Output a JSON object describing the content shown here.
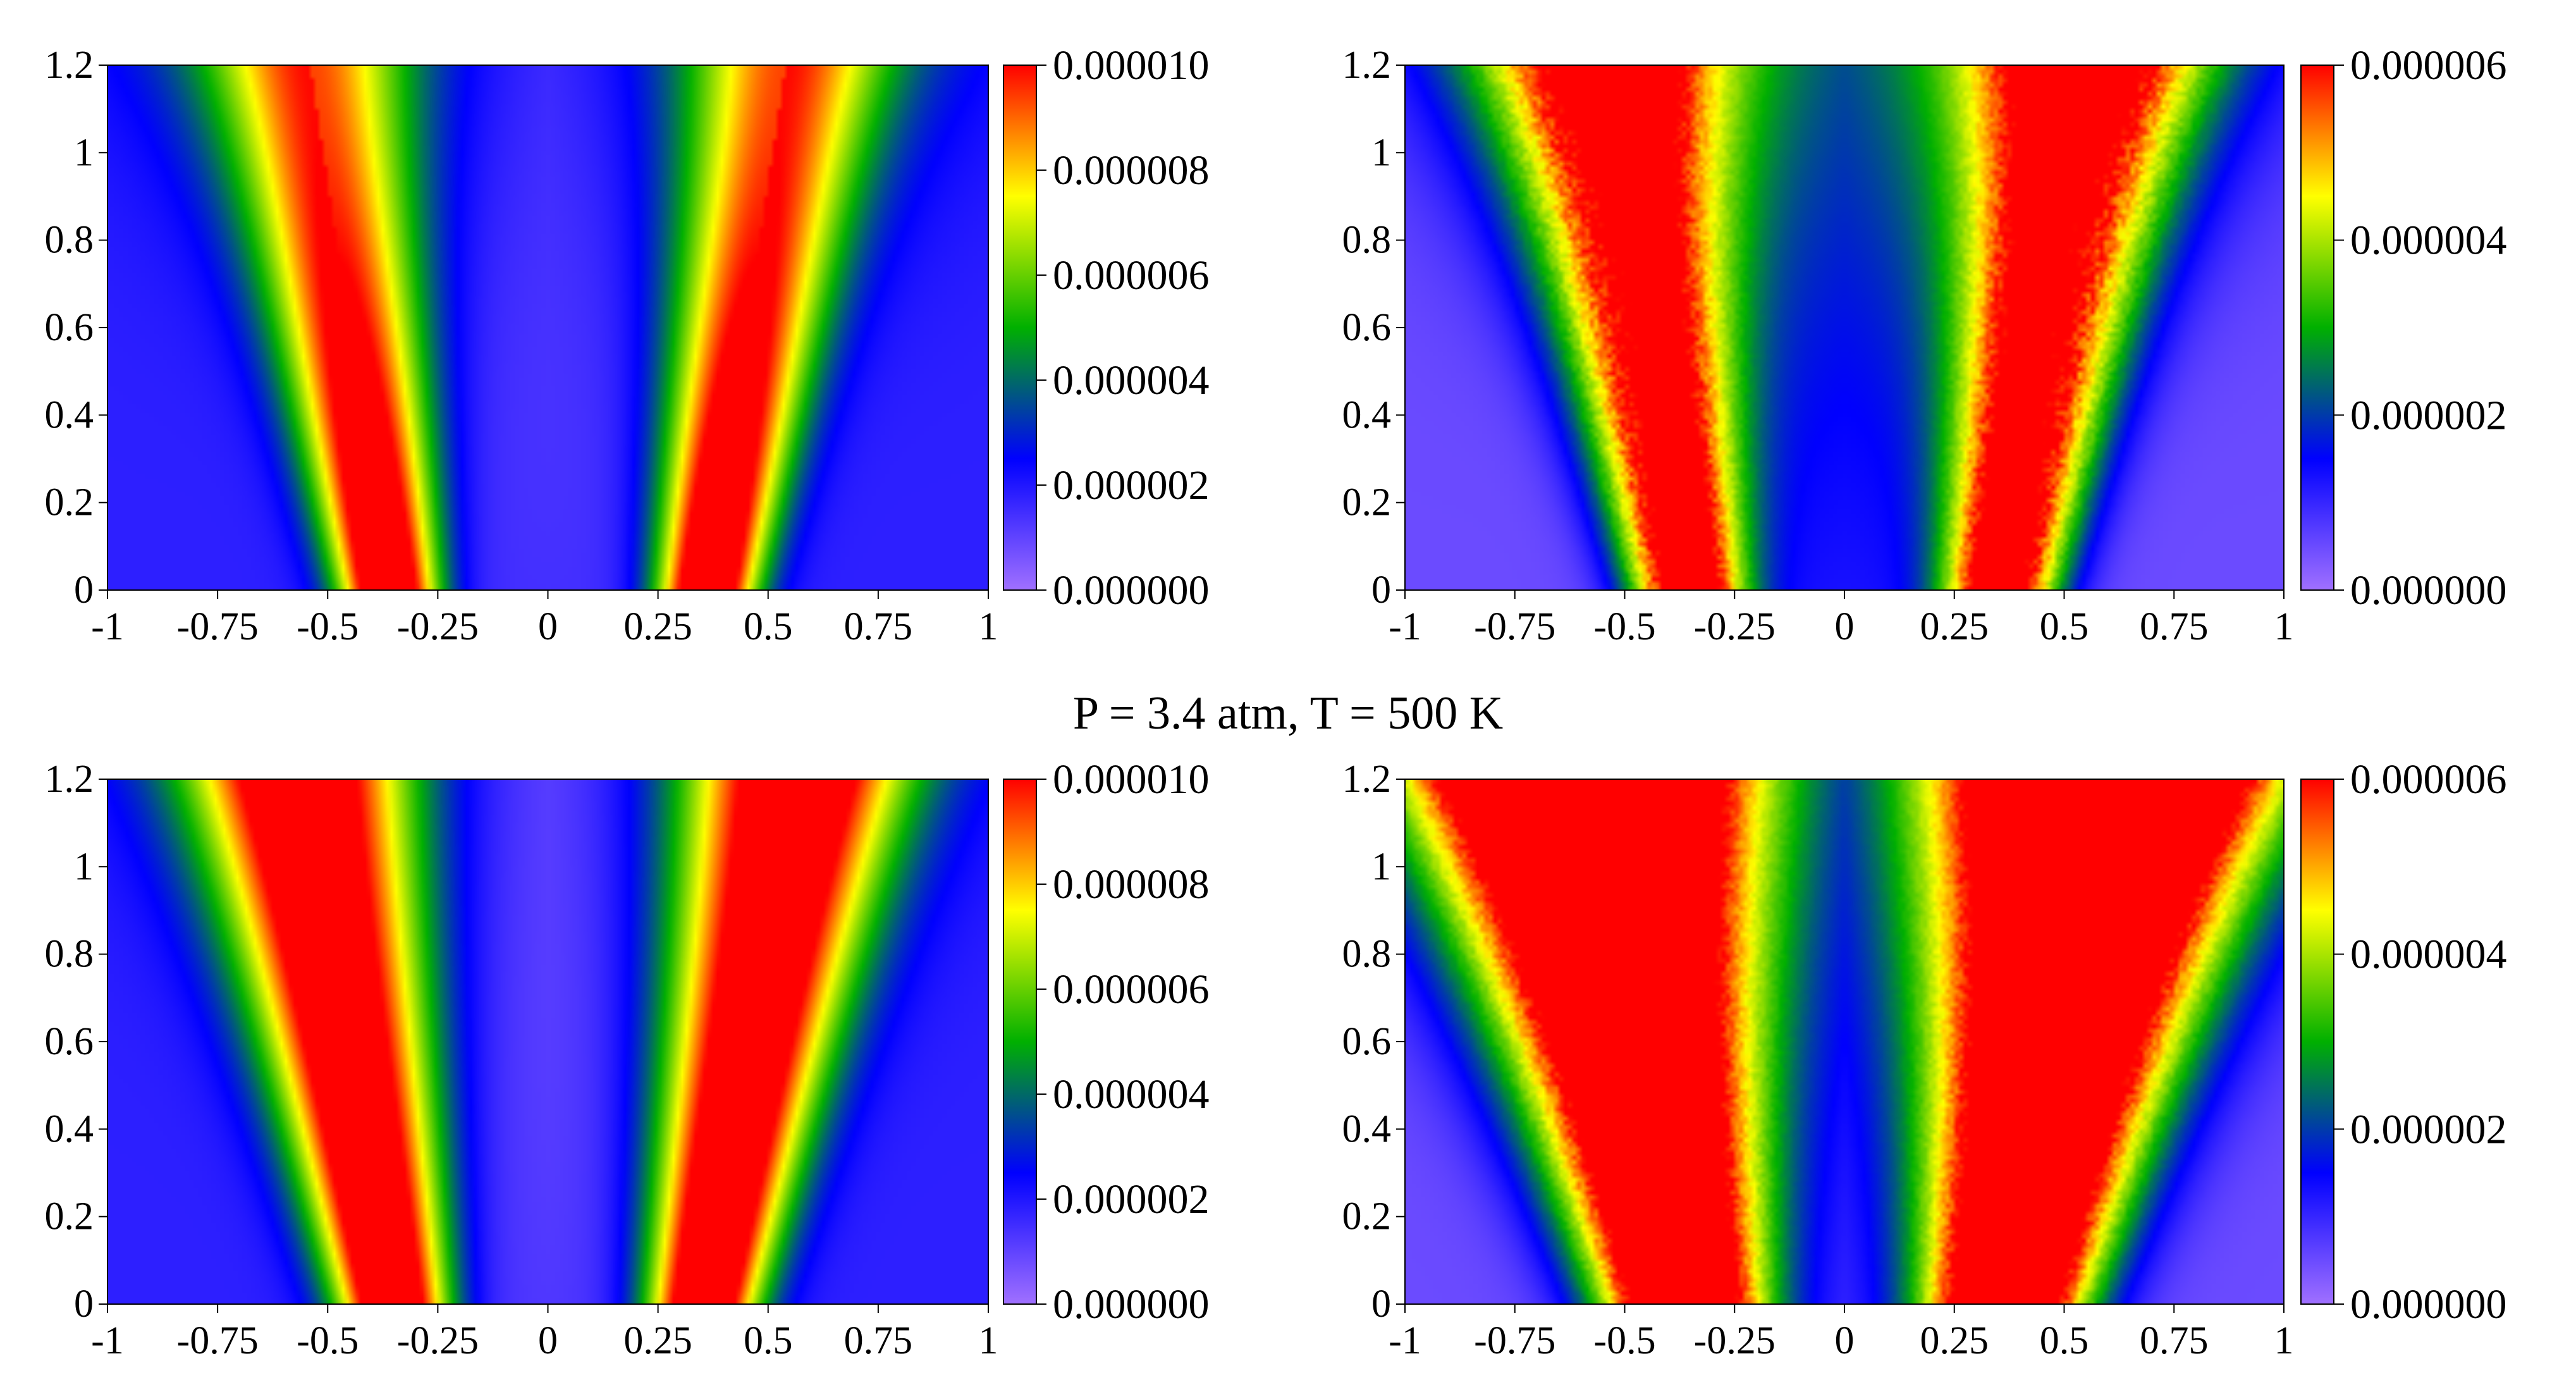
{
  "caption": "P = 3.4 atm, T = 500 K",
  "colors": {
    "colormap": [
      "#a070ff",
      "#0000ff",
      "#00b000",
      "#ffff00",
      "#ff0000"
    ],
    "axis": "#000000"
  },
  "chart_data": [
    {
      "type": "heatmap",
      "panel": "top-left",
      "title": "",
      "xlim": [
        -1,
        1
      ],
      "ylim": [
        0,
        1.2
      ],
      "xticks": [
        "-1",
        "-0.75",
        "-0.5",
        "-0.25",
        "0",
        "0.25",
        "0.5",
        "0.75",
        "1"
      ],
      "yticks": [
        "0",
        "0.2",
        "0.4",
        "0.6",
        "0.8",
        "1",
        "1.2"
      ],
      "colorbar": {
        "min": 0,
        "max": 1e-05,
        "ticks": [
          "0.000000",
          "0.000002",
          "0.000004",
          "0.000006",
          "0.000008",
          "0.000010"
        ]
      },
      "field": {
        "center": 0.36,
        "spread": 0.08,
        "slope": 0.15,
        "peak": 1e-05,
        "core_fade": 0.55,
        "center_level": 1.2e-06,
        "background": 1.8e-06,
        "top_level": 3.6e-06,
        "noise": 0.0
      }
    },
    {
      "type": "heatmap",
      "panel": "top-right",
      "title": "",
      "xlim": [
        -1,
        1
      ],
      "ylim": [
        0,
        1.2
      ],
      "xticks": [
        "-1",
        "-0.75",
        "-0.5",
        "-0.25",
        "0",
        "0.25",
        "0.5",
        "0.75",
        "1"
      ],
      "yticks": [
        "0",
        "0.2",
        "0.4",
        "0.6",
        "0.8",
        "1",
        "1.2"
      ],
      "colorbar": {
        "min": 0,
        "max": 6e-06,
        "ticks": [
          "0.000000",
          "0.000002",
          "0.000004",
          "0.000006"
        ]
      },
      "field": {
        "center": 0.36,
        "spread": 0.09,
        "slope": 0.17,
        "peak": 6e-06,
        "core_fade": 0.75,
        "center_level": 1.8e-06,
        "background": 5e-07,
        "top_level": 2.4e-06,
        "noise": 0.12
      }
    },
    {
      "type": "heatmap",
      "panel": "bottom-left",
      "title": "",
      "xlim": [
        -1,
        1
      ],
      "ylim": [
        0,
        1.2
      ],
      "xticks": [
        "-1",
        "-0.75",
        "-0.5",
        "-0.25",
        "0",
        "0.25",
        "0.5",
        "0.75",
        "1"
      ],
      "yticks": [
        "0",
        "0.2",
        "0.4",
        "0.6",
        "0.8",
        "1",
        "1.2"
      ],
      "colorbar": {
        "min": 0,
        "max": 1e-05,
        "ticks": [
          "0.000000",
          "0.000002",
          "0.000004",
          "0.000006",
          "0.000008",
          "0.000010"
        ]
      },
      "field": {
        "center": 0.35,
        "spread": 0.09,
        "slope": 0.17,
        "peak": 1e-05,
        "core_fade": 0.9,
        "center_level": 9e-07,
        "background": 1.8e-06,
        "top_level": 2.8e-06,
        "noise": 0.0
      }
    },
    {
      "type": "heatmap",
      "panel": "bottom-right",
      "title": "",
      "xlim": [
        -1,
        1
      ],
      "ylim": [
        0,
        1.2
      ],
      "xticks": [
        "-1",
        "-0.75",
        "-0.5",
        "-0.25",
        "0",
        "0.25",
        "0.5",
        "0.75",
        "1"
      ],
      "yticks": [
        "0",
        "0.2",
        "0.4",
        "0.6",
        "0.8",
        "1",
        "1.2"
      ],
      "colorbar": {
        "min": 0,
        "max": 6e-06,
        "ticks": [
          "0.000000",
          "0.000002",
          "0.000004",
          "0.000006"
        ]
      },
      "field": {
        "center": 0.37,
        "spread": 0.13,
        "slope": 0.2,
        "peak": 7.5e-06,
        "core_fade": 1.0,
        "center_level": 1.2e-06,
        "background": 5e-07,
        "top_level": 3.2e-06,
        "noise": 0.12
      }
    }
  ]
}
